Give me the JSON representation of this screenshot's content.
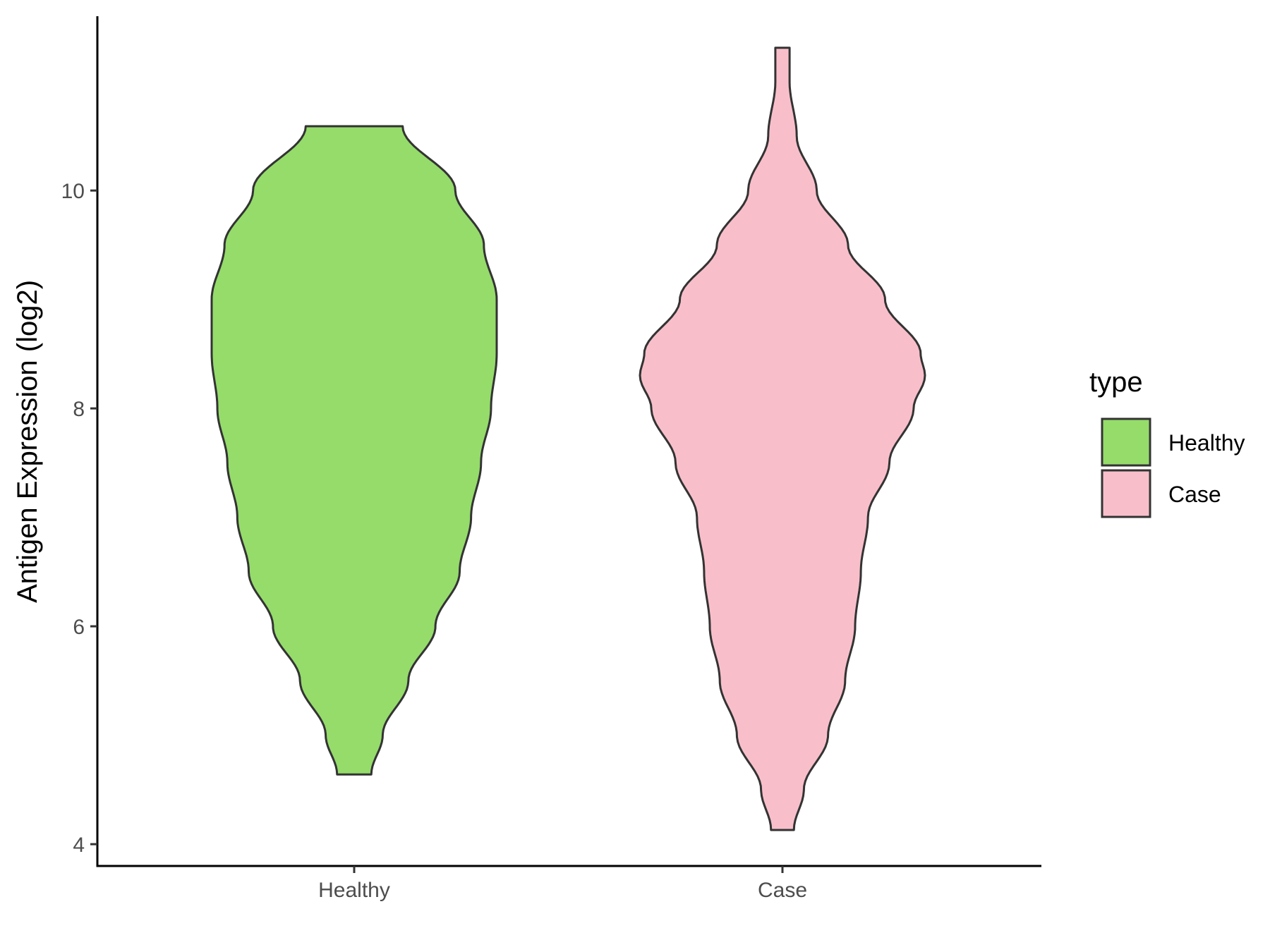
{
  "chart_data": {
    "type": "violin",
    "title": "",
    "xlabel": "",
    "ylabel": "Antigen Expression (log2)",
    "ylim": [
      3.8,
      11.6
    ],
    "y_ticks": [
      4,
      6,
      8,
      10
    ],
    "categories": [
      "Healthy",
      "Case"
    ],
    "legend": {
      "title": "type",
      "position": "right"
    },
    "grid": false,
    "series": [
      {
        "name": "Healthy",
        "color": "#95dc6b",
        "min": 4.64,
        "max": 10.59,
        "density": [
          [
            4.64,
            0.12
          ],
          [
            5.0,
            0.2
          ],
          [
            5.5,
            0.38
          ],
          [
            6.0,
            0.57
          ],
          [
            6.5,
            0.74
          ],
          [
            7.0,
            0.82
          ],
          [
            7.5,
            0.89
          ],
          [
            8.0,
            0.96
          ],
          [
            8.5,
            1.0
          ],
          [
            9.0,
            1.0
          ],
          [
            9.5,
            0.91
          ],
          [
            10.0,
            0.71
          ],
          [
            10.59,
            0.34
          ]
        ]
      },
      {
        "name": "Case",
        "color": "#f8bfca",
        "min": 4.13,
        "max": 11.31,
        "density": [
          [
            4.13,
            0.08
          ],
          [
            4.5,
            0.15
          ],
          [
            5.0,
            0.32
          ],
          [
            5.5,
            0.44
          ],
          [
            6.0,
            0.51
          ],
          [
            6.5,
            0.55
          ],
          [
            7.0,
            0.6
          ],
          [
            7.5,
            0.75
          ],
          [
            8.0,
            0.92
          ],
          [
            8.3,
            1.0
          ],
          [
            8.5,
            0.97
          ],
          [
            9.0,
            0.72
          ],
          [
            9.5,
            0.46
          ],
          [
            10.0,
            0.24
          ],
          [
            10.5,
            0.1
          ],
          [
            11.0,
            0.05
          ],
          [
            11.31,
            0.05
          ]
        ]
      }
    ]
  }
}
